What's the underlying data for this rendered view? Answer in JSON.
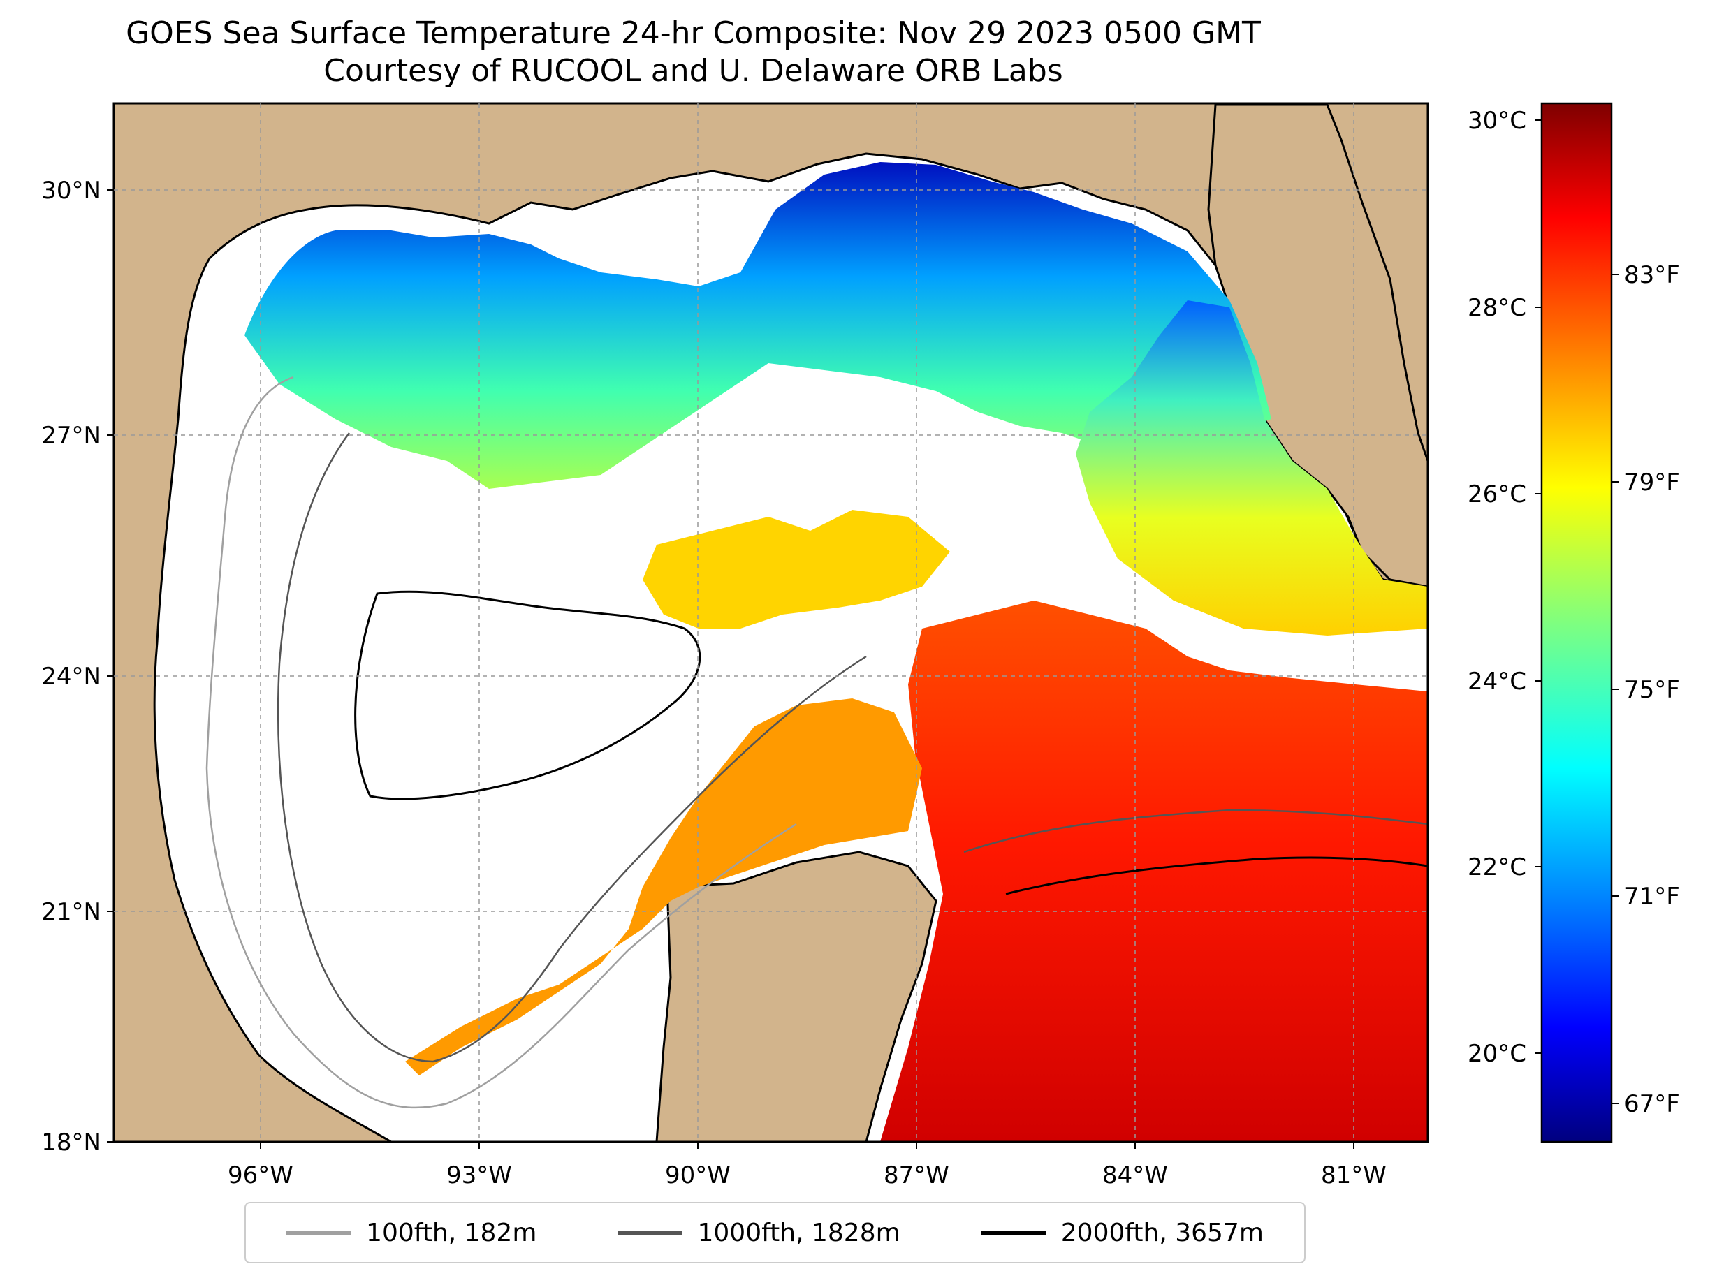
{
  "title": {
    "line1": "GOES Sea Surface Temperature 24-hr Composite: Nov 29 2023 0500 GMT",
    "line2": "Courtesy of RUCOOL and U. Delaware ORB Labs"
  },
  "map": {
    "lon_labels": [
      "96°W",
      "93°W",
      "90°W",
      "87°W",
      "84°W",
      "81°W"
    ],
    "lat_labels": [
      "30°N",
      "27°N",
      "24°N",
      "21°N",
      "18°N"
    ],
    "land_color": "#d2b48c",
    "no_data_color": "#ffffff",
    "grid_style": "dashed gray"
  },
  "colorbar": {
    "celsius_labels": [
      "30°C",
      "28°C",
      "26°C",
      "24°C",
      "22°C",
      "20°C"
    ],
    "fahrenheit_labels": [
      "83°F",
      "79°F",
      "75°F",
      "71°F",
      "67°F"
    ],
    "colormap": "jet",
    "colormap_stops": [
      "#00007f",
      "#0000ff",
      "#007fff",
      "#00ffff",
      "#7fff7f",
      "#ffff00",
      "#ff7f00",
      "#ff0000",
      "#7f0000"
    ]
  },
  "legend": {
    "items": [
      {
        "label": "100fth, 182m",
        "color": "#a0a0a0"
      },
      {
        "label": "1000fth, 1828m",
        "color": "#555555"
      },
      {
        "label": "2000fth, 3657m",
        "color": "#000000"
      }
    ]
  }
}
